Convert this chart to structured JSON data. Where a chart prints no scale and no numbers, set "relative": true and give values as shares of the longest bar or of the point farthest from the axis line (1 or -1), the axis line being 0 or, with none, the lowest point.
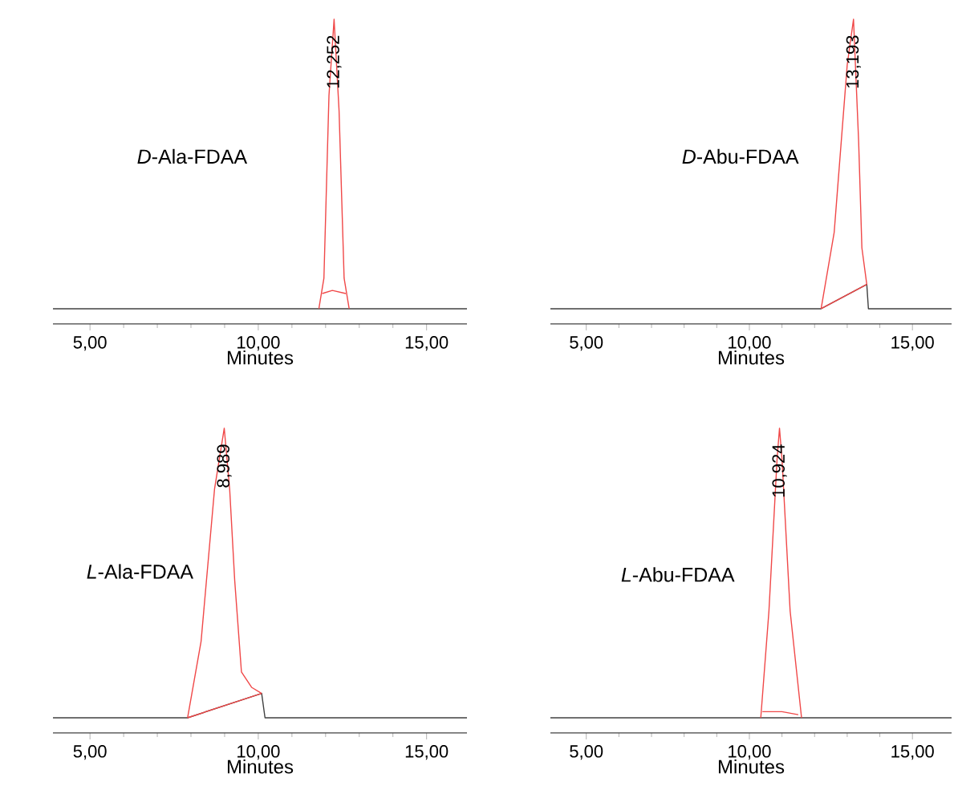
{
  "chart_data": [
    {
      "type": "line",
      "relative": true,
      "title": "*D*-Ala-FDAA",
      "xlabel": "Minutes",
      "xlim": [
        3.9,
        16.2
      ],
      "xticks": [
        {
          "value": 5,
          "label": "5,00"
        },
        {
          "value": 10,
          "label": "10,00"
        },
        {
          "value": 15,
          "label": "15,00"
        }
      ],
      "annotations": [
        {
          "text": "12,252",
          "x": 12.252,
          "y": 1
        }
      ],
      "series": [
        {
          "color": "#404040",
          "x": [
            3.9,
            11.8,
            12.7,
            16.2
          ],
          "values": [
            0.05,
            0.05,
            0.05,
            0.05
          ]
        },
        {
          "color": "#f04848",
          "x": [
            11.8,
            11.95,
            12.1,
            12.252,
            12.4,
            12.55,
            12.7
          ],
          "values": [
            0.05,
            0.15,
            0.75,
            1,
            0.7,
            0.15,
            0.05
          ]
        },
        {
          "color": "#f04848",
          "x": [
            11.9,
            12.2,
            12.6
          ],
          "values": [
            0.1,
            0.11,
            0.1
          ]
        }
      ]
    },
    {
      "type": "line",
      "relative": true,
      "title": "*D*-Abu-FDAA",
      "xlabel": "Minutes",
      "xlim": [
        3.9,
        16.2
      ],
      "xticks": [
        {
          "value": 5,
          "label": "5,00"
        },
        {
          "value": 10,
          "label": "10,00"
        },
        {
          "value": 15,
          "label": "15,00"
        }
      ],
      "annotations": [
        {
          "text": "13,193",
          "x": 13.193,
          "y": 1
        }
      ],
      "series": [
        {
          "color": "#404040",
          "x": [
            3.9,
            12.2,
            13.6,
            13.65,
            16.2
          ],
          "values": [
            0.05,
            0.05,
            0.13,
            0.05,
            0.05
          ]
        },
        {
          "color": "#f04848",
          "x": [
            12.2,
            12.6,
            13.0,
            13.193,
            13.35,
            13.45,
            13.6
          ],
          "values": [
            0.05,
            0.3,
            0.85,
            1,
            0.6,
            0.25,
            0.13
          ]
        },
        {
          "color": "#f04848",
          "x": [
            12.2,
            13.6
          ],
          "values": [
            0.05,
            0.13
          ]
        }
      ]
    },
    {
      "type": "line",
      "relative": true,
      "title": "*L*-Ala-FDAA",
      "xlabel": "Minutes",
      "xlim": [
        3.9,
        16.2
      ],
      "xticks": [
        {
          "value": 5,
          "label": "5,00"
        },
        {
          "value": 10,
          "label": "10,00"
        },
        {
          "value": 15,
          "label": "15,00"
        }
      ],
      "annotations": [
        {
          "text": "8,989",
          "x": 8.989,
          "y": 1
        }
      ],
      "series": [
        {
          "color": "#404040",
          "x": [
            3.9,
            7.9,
            10.1,
            10.2,
            16.2
          ],
          "values": [
            0.05,
            0.05,
            0.13,
            0.05,
            0.05
          ]
        },
        {
          "color": "#f04848",
          "x": [
            7.9,
            8.3,
            8.7,
            8.989,
            9.15,
            9.3,
            9.5,
            9.8,
            10.1
          ],
          "values": [
            0.05,
            0.3,
            0.8,
            1,
            0.8,
            0.5,
            0.2,
            0.15,
            0.13
          ]
        },
        {
          "color": "#f04848",
          "x": [
            7.9,
            10.1
          ],
          "values": [
            0.05,
            0.13
          ]
        }
      ]
    },
    {
      "type": "line",
      "relative": true,
      "title": "*L*-Abu-FDAA",
      "xlabel": "Minutes",
      "xlim": [
        3.9,
        16.2
      ],
      "xticks": [
        {
          "value": 5,
          "label": "5,00"
        },
        {
          "value": 10,
          "label": "10,00"
        },
        {
          "value": 15,
          "label": "15,00"
        }
      ],
      "annotations": [
        {
          "text": "10,924",
          "x": 10.924,
          "y": 1
        }
      ],
      "series": [
        {
          "color": "#404040",
          "x": [
            3.9,
            10.35,
            11.6,
            16.2
          ],
          "values": [
            0.05,
            0.05,
            0.05,
            0.05
          ]
        },
        {
          "color": "#f04848",
          "x": [
            10.35,
            10.6,
            10.85,
            10.924,
            11.0,
            11.25,
            11.6
          ],
          "values": [
            0.05,
            0.4,
            0.9,
            1,
            0.9,
            0.4,
            0.05
          ]
        },
        {
          "color": "#f04848",
          "x": [
            10.4,
            11.0,
            11.5
          ],
          "values": [
            0.07,
            0.07,
            0.06
          ]
        }
      ]
    }
  ]
}
